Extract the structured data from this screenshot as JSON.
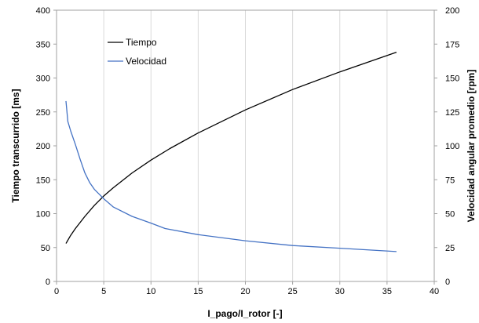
{
  "chart_data": {
    "type": "line",
    "xlabel": "I_pago/I_rotor [-]",
    "ylabel_left": "Tiempo transcurrido [ms]",
    "ylabel_right": "Velocidad angular promedio [rpm]",
    "xlim": [
      0,
      40
    ],
    "xticks": [
      0,
      5,
      10,
      15,
      20,
      25,
      30,
      35,
      40
    ],
    "ylim_left": [
      0,
      400
    ],
    "yticks_left": [
      0,
      50,
      100,
      150,
      200,
      250,
      300,
      350,
      400
    ],
    "ylim_right": [
      0,
      200
    ],
    "yticks_right": [
      0,
      25,
      50,
      75,
      100,
      125,
      150,
      175,
      200
    ],
    "grid": "vertical",
    "legend_position": "top-left",
    "series": [
      {
        "name": "Tiempo",
        "axis": "left",
        "color": "#000000",
        "x": [
          1,
          1.5,
          2,
          3,
          4,
          5,
          6,
          8,
          10,
          12,
          15,
          20,
          25,
          30,
          36
        ],
        "y": [
          56,
          68,
          78,
          96,
          112,
          126,
          138,
          160,
          179,
          196,
          219,
          253,
          283,
          309,
          338
        ]
      },
      {
        "name": "Velocidad",
        "axis": "right",
        "color": "#4472c4",
        "x": [
          1,
          1.2,
          1.5,
          2,
          2.5,
          3,
          3.5,
          4,
          5,
          6,
          8,
          10,
          11.5,
          15,
          20,
          25,
          30,
          36
        ],
        "y": [
          133,
          118,
          111,
          101,
          90,
          80,
          73,
          68,
          61,
          55,
          48,
          43,
          39,
          34.5,
          30,
          26.5,
          24.5,
          22
        ]
      }
    ]
  }
}
